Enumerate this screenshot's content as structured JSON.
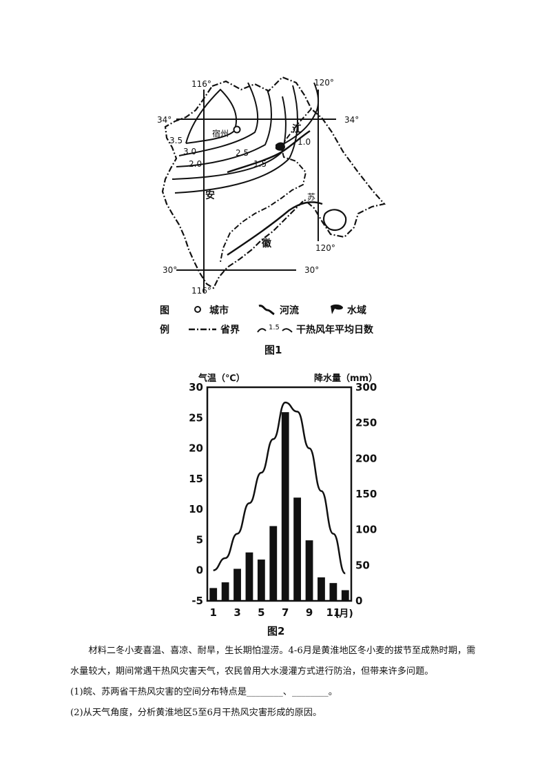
{
  "figure1": {
    "caption": "图1",
    "coords": {
      "lon116_top": "116°",
      "lon120_top": "120°",
      "lat34_left": "34°",
      "lat34_right": "34°",
      "lon120_mid": "120°",
      "lat30_left": "30°",
      "lat30_right": "30°",
      "lon116_bottom": "116°"
    },
    "place_labels": {
      "suzhou": "宿州",
      "jiang": "江",
      "an": "安",
      "su": "苏",
      "hui": "徽"
    },
    "isoline_labels": [
      "3.5",
      "3.0",
      "2.5",
      "2.0",
      "1.5",
      "1.0"
    ],
    "legend": {
      "title_1": "图",
      "title_2": "例",
      "city": "城市",
      "river": "河流",
      "water": "水域",
      "boundary": "省界",
      "isoline_sample": "1.5",
      "isoline": "干热风年平均日数"
    }
  },
  "figure2": {
    "caption": "图2",
    "left_axis_title": "气温（℃）",
    "right_axis_title": "降水量（mm）",
    "x_unit": "(月)"
  },
  "chart_data": {
    "type": "bar",
    "categories": [
      1,
      2,
      3,
      4,
      5,
      6,
      7,
      8,
      9,
      10,
      11,
      12
    ],
    "x_tick_labels": [
      "1",
      "3",
      "5",
      "7",
      "9",
      "11"
    ],
    "series": [
      {
        "type": "line",
        "axis": "left",
        "values": [
          0,
          2,
          6,
          11,
          16,
          21.5,
          27.5,
          26,
          20,
          13,
          6,
          -0.5
        ]
      },
      {
        "type": "bar",
        "axis": "right",
        "values": [
          18,
          26,
          45,
          68,
          58,
          105,
          265,
          145,
          85,
          33,
          25,
          15
        ]
      }
    ],
    "left_axis": {
      "ylim": [
        -5,
        30
      ],
      "ticks": [
        "30",
        "25",
        "20",
        "15",
        "10",
        "5",
        "0",
        "-5"
      ]
    },
    "right_axis": {
      "ylim": [
        0,
        300
      ],
      "ticks": [
        "300",
        "250",
        "200",
        "150",
        "100",
        "50",
        "0"
      ]
    }
  },
  "text": {
    "material2": "材料二冬小麦喜温、喜凉、耐旱，生长期怕湿涝。4-6月是黄淮地区冬小麦的拔节至成熟时期，需水量较大，期间常遇干热风灾害天气，农民曾用大水漫灌方式进行防治，但带来许多问题。",
    "q1": "(1)皖、苏两省干热风灾害的空间分布特点是________、________。",
    "q2": "(2)从天气角度，分析黄淮地区5至6月干热风灾害形成的原因。"
  }
}
